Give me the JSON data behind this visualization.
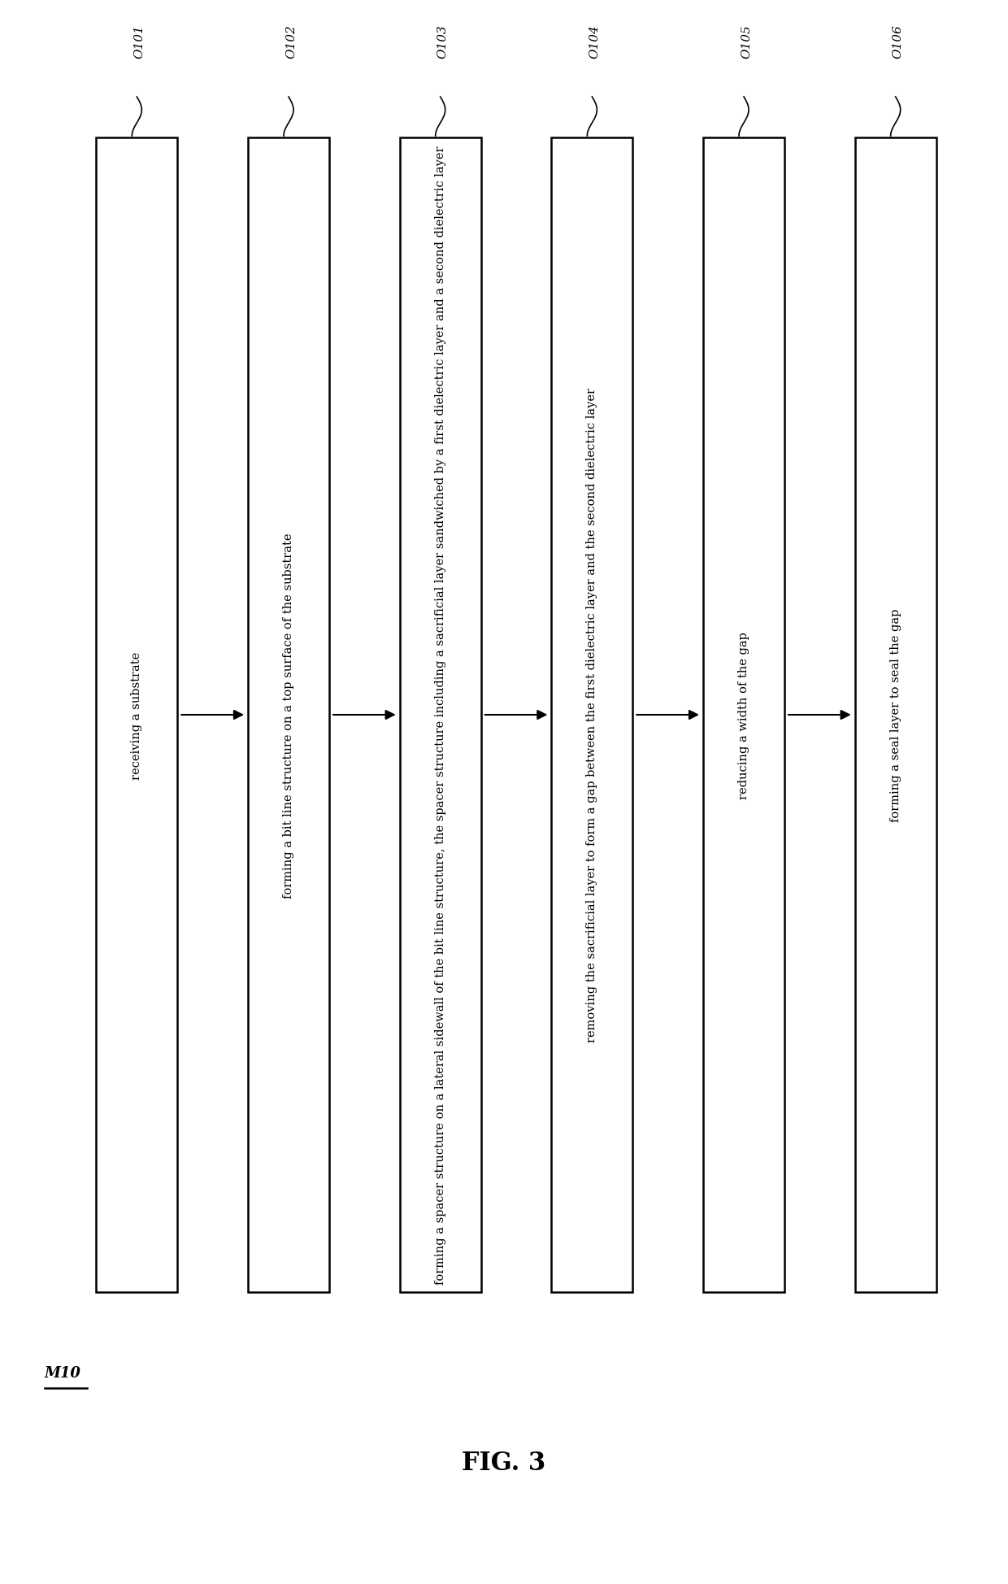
{
  "title": "FIG. 3",
  "m10_label": "M10",
  "steps": [
    {
      "id": "O101",
      "text": "receiving a substrate"
    },
    {
      "id": "O102",
      "text": "forming a bit line structure on a top surface of the substrate"
    },
    {
      "id": "O103",
      "text": "forming a spacer structure on a lateral sidewall of the bit line structure, the spacer structure including a sacrificial layer sandwiched by a first dielectric layer and a second dielectric layer"
    },
    {
      "id": "O104",
      "text": "removing the sacrificial layer to form a gap between the first dielectric layer and the second dielectric layer"
    },
    {
      "id": "O105",
      "text": "reducing a width of the gap"
    },
    {
      "id": "O106",
      "text": "forming a seal layer to seal the gap"
    }
  ],
  "background_color": "#ffffff",
  "box_edge_color": "#000000",
  "text_color": "#000000",
  "arrow_color": "#000000",
  "font_size": 10.5,
  "label_font_size": 11,
  "title_font_size": 22
}
